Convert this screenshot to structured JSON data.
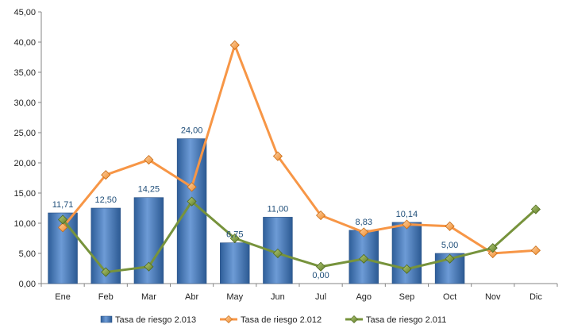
{
  "chart_data": {
    "type": "bar",
    "categories": [
      "Ene",
      "Feb",
      "Mar",
      "Abr",
      "May",
      "Jun",
      "Jul",
      "Ago",
      "Sep",
      "Oct",
      "Nov",
      "Dic"
    ],
    "ylim": [
      0,
      45
    ],
    "yticks": [
      "0,00",
      "5,00",
      "10,00",
      "15,00",
      "20,00",
      "25,00",
      "30,00",
      "35,00",
      "40,00",
      "45,00"
    ],
    "grid": false,
    "legend_position": "bottom",
    "series": [
      {
        "name": "Tasa de riesgo 2.013",
        "kind": "bar",
        "color": "#4A7EBB",
        "values": [
          11.71,
          12.5,
          14.25,
          24.0,
          6.75,
          11.0,
          0.0,
          8.83,
          10.14,
          5.0,
          null,
          null
        ],
        "labels": [
          "11,71",
          "12,50",
          "14,25",
          "24,00",
          "6,75",
          "11,00",
          "0,00",
          "8,83",
          "10,14",
          "5,00",
          null,
          null
        ]
      },
      {
        "name": "Tasa de riesgo 2.012",
        "kind": "line",
        "color": "#F79646",
        "values": [
          9.3,
          18.0,
          20.5,
          16.0,
          39.5,
          21.1,
          11.3,
          8.5,
          9.8,
          9.5,
          5.0,
          5.5
        ]
      },
      {
        "name": "Tasa de riesgo 2.011",
        "kind": "line",
        "color": "#77933C",
        "values": [
          10.6,
          1.9,
          2.8,
          13.6,
          7.5,
          5.0,
          2.8,
          4.1,
          2.4,
          4.1,
          5.9,
          12.3
        ]
      }
    ]
  }
}
